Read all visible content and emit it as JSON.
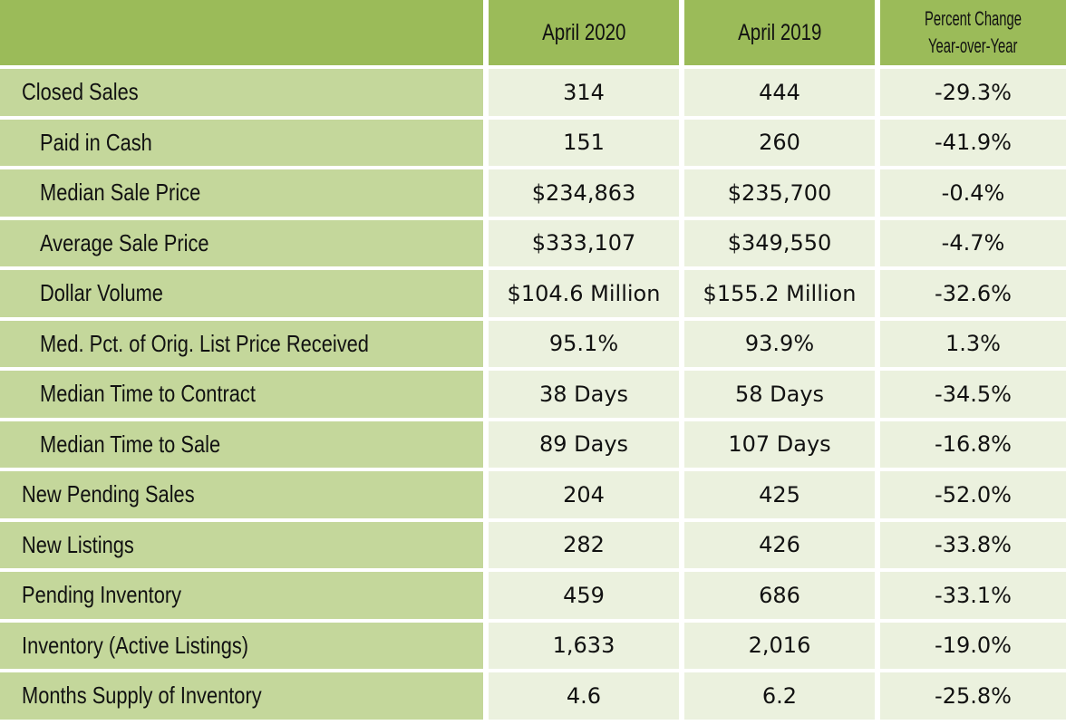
{
  "header": {
    "col1": "",
    "col2": "April 2020",
    "col3": "April 2019",
    "col4_line1": "Percent Change",
    "col4_line2": "Year-over-Year"
  },
  "rows": [
    {
      "label": "Closed Sales",
      "apr2020": "314",
      "apr2019": "444",
      "change": "-29.3%"
    },
    {
      "label": "Paid in Cash",
      "apr2020": "151",
      "apr2019": "260",
      "change": "-41.9%"
    },
    {
      "label": "Median Sale Price",
      "apr2020": "$234,863",
      "apr2019": "$235,700",
      "change": "-0.4%"
    },
    {
      "label": "Average Sale Price",
      "apr2020": "$333,107",
      "apr2019": "$349,550",
      "change": "-4.7%"
    },
    {
      "label": "Dollar Volume",
      "apr2020": "$104.6 Million",
      "apr2019": "$155.2 Million",
      "change": "-32.6%"
    },
    {
      "label": "Med. Pct. of Orig. List Price Received",
      "apr2020": "95.1%",
      "apr2019": "93.9%",
      "change": "1.3%"
    },
    {
      "label": "Median Time to Contract",
      "apr2020": "38 Days",
      "apr2019": "58 Days",
      "change": "-34.5%"
    },
    {
      "label": "Median Time to Sale",
      "apr2020": "89 Days",
      "apr2019": "107 Days",
      "change": "-16.8%"
    },
    {
      "label": "New Pending Sales",
      "apr2020": "204",
      "apr2019": "425",
      "change": "-52.0%"
    },
    {
      "label": "New Listings",
      "apr2020": "282",
      "apr2019": "426",
      "change": "-33.8%"
    },
    {
      "label": "Pending Inventory",
      "apr2020": "459",
      "apr2019": "686",
      "change": "-33.1%"
    },
    {
      "label": "Inventory (Active Listings)",
      "apr2020": "1,633",
      "apr2019": "2,016",
      "change": "-19.0%"
    },
    {
      "label": "Months Supply of Inventory",
      "apr2020": "4.6",
      "apr2019": "6.2",
      "change": "-25.8%"
    }
  ],
  "colors": {
    "header": "#9bbb59",
    "label": "#c4d79b",
    "value": "#ebf1de"
  }
}
